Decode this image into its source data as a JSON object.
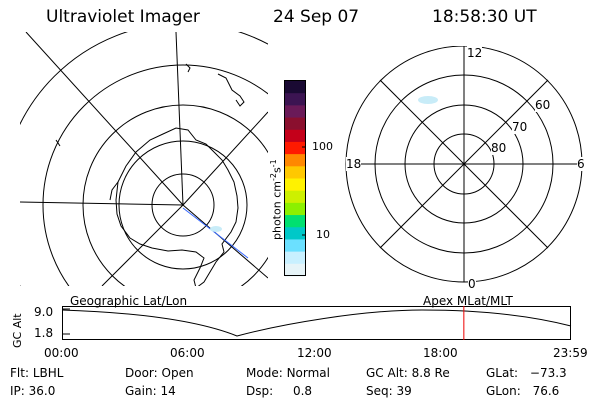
{
  "header": {
    "title": "Ultraviolet Imager",
    "date": "24 Sep 07",
    "time": "18:58:30 UT"
  },
  "colorbar": {
    "unit_label": "photon cm",
    "unit_sup1": "-2",
    "unit_s": "s",
    "unit_sup2": "-1",
    "ticks": [
      "100",
      "10"
    ],
    "colors": [
      "#1a0a33",
      "#3c1452",
      "#6a1a58",
      "#8a0f2e",
      "#c4001a",
      "#ff1a00",
      "#ff8800",
      "#ffc800",
      "#fff200",
      "#cdf000",
      "#8cf000",
      "#00e070",
      "#00c8c8",
      "#6be0ff",
      "#c8f0ff",
      "#e6f4f8"
    ]
  },
  "left_map": {
    "label": "Geographic Lat/Lon"
  },
  "right_map": {
    "label": "Apex MLat/MLT",
    "mlt_labels": {
      "top": "12",
      "left": "18",
      "right": "6",
      "bottom": "0"
    },
    "lat_labels": [
      "60",
      "70",
      "80"
    ]
  },
  "timeline": {
    "ylabel": "GC Alt",
    "y_ticks": [
      "9.0",
      "1.8"
    ],
    "x_ticks": [
      "00:00",
      "06:00",
      "12:00",
      "18:00",
      "23:59"
    ],
    "marker_time_hours": 18.975
  },
  "status": {
    "flt_label": "Flt:",
    "flt_value": "LBHL",
    "door_label": "Door:",
    "door_value": "Open",
    "mode_label": "Mode:",
    "mode_value": "Normal",
    "gcalt_label": "GC Alt:",
    "gcalt_value": "8.8 Re",
    "glat_label": "GLat:",
    "glat_value": "−73.3",
    "ip_label": "IP:",
    "ip_value": "36.0",
    "gain_label": "Gain:",
    "gain_value": "14",
    "dsp_label": "Dsp:",
    "dsp_value": "0.8",
    "seq_label": "Seq:",
    "seq_value": "39",
    "glon_label": "GLon:",
    "glon_value": "76.6"
  }
}
